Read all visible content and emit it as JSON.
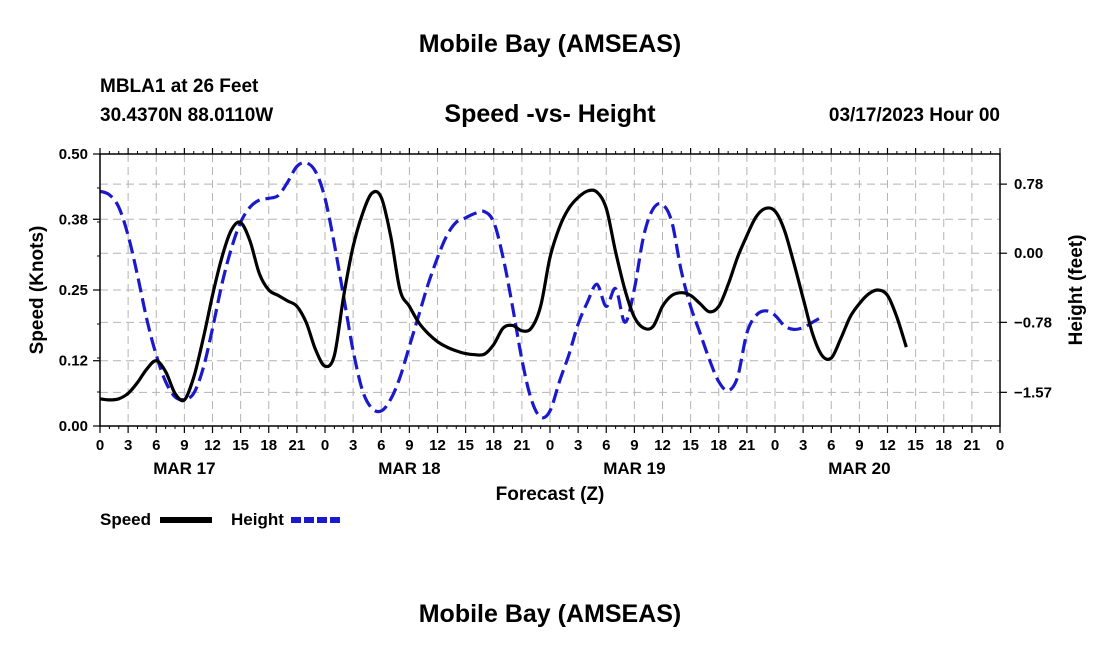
{
  "page": {
    "title": "Mobile Bay (AMSEAS)",
    "station": "MBLA1 at 26 Feet",
    "coords": "30.4370N  88.0110W",
    "run": "03/17/2023 Hour 00",
    "footer_title": "Mobile Bay (AMSEAS)"
  },
  "chart_data": {
    "type": "line",
    "title": "Speed -vs- Height",
    "xlabel": "Forecast (Z)",
    "ylabel": "Speed (Knots)",
    "y2label": "Height (feet)",
    "x_range_hours": [
      0,
      96
    ],
    "x_tick_labels": [
      "0",
      "3",
      "6",
      "9",
      "12",
      "15",
      "18",
      "21",
      "0",
      "3",
      "6",
      "9",
      "12",
      "15",
      "18",
      "21",
      "0",
      "3",
      "6",
      "9",
      "12",
      "15",
      "18",
      "21",
      "0",
      "3",
      "6",
      "9",
      "12",
      "15",
      "18",
      "21",
      "0"
    ],
    "date_labels": [
      {
        "label": "MAR 17",
        "hour": 9
      },
      {
        "label": "MAR 18",
        "hour": 33
      },
      {
        "label": "MAR 19",
        "hour": 57
      },
      {
        "label": "MAR 20",
        "hour": 81
      }
    ],
    "ylim": [
      0,
      0.5
    ],
    "y_ticks": [
      0.0,
      0.12,
      0.25,
      0.38,
      0.5
    ],
    "y_tick_labels": [
      "0.00",
      "0.12",
      "0.25",
      "0.38",
      "0.50"
    ],
    "y2lim": [
      -1.95,
      1.12
    ],
    "y2_ticks": [
      0.78,
      0.0,
      -0.78,
      -1.57
    ],
    "y2_tick_labels": [
      "0.78",
      "0.00",
      "−0.78",
      "−1.57"
    ],
    "grid": true,
    "legend_placement": "bottom-left",
    "series": [
      {
        "name": "Speed",
        "axis": "left",
        "color": "#000000",
        "style": "solid",
        "points": [
          [
            0,
            0.05
          ],
          [
            1,
            0.048
          ],
          [
            2,
            0.05
          ],
          [
            3,
            0.06
          ],
          [
            4,
            0.08
          ],
          [
            5,
            0.105
          ],
          [
            6,
            0.12
          ],
          [
            7,
            0.1
          ],
          [
            8,
            0.06
          ],
          [
            9,
            0.048
          ],
          [
            10,
            0.09
          ],
          [
            11,
            0.16
          ],
          [
            12,
            0.24
          ],
          [
            13,
            0.31
          ],
          [
            14,
            0.36
          ],
          [
            15,
            0.374
          ],
          [
            16,
            0.34
          ],
          [
            17,
            0.28
          ],
          [
            18,
            0.25
          ],
          [
            19,
            0.24
          ],
          [
            20,
            0.23
          ],
          [
            21,
            0.22
          ],
          [
            22,
            0.19
          ],
          [
            23,
            0.14
          ],
          [
            24,
            0.11
          ],
          [
            25,
            0.13
          ],
          [
            26,
            0.24
          ],
          [
            27,
            0.33
          ],
          [
            28,
            0.39
          ],
          [
            29,
            0.428
          ],
          [
            30,
            0.42
          ],
          [
            31,
            0.35
          ],
          [
            32,
            0.25
          ],
          [
            33,
            0.22
          ],
          [
            34,
            0.19
          ],
          [
            35,
            0.17
          ],
          [
            36,
            0.155
          ],
          [
            37,
            0.145
          ],
          [
            38,
            0.138
          ],
          [
            39,
            0.133
          ],
          [
            40,
            0.131
          ],
          [
            41,
            0.132
          ],
          [
            42,
            0.15
          ],
          [
            43,
            0.18
          ],
          [
            44,
            0.185
          ],
          [
            45,
            0.175
          ],
          [
            46,
            0.18
          ],
          [
            47,
            0.22
          ],
          [
            48,
            0.31
          ],
          [
            49,
            0.365
          ],
          [
            50,
            0.4
          ],
          [
            51,
            0.42
          ],
          [
            52,
            0.432
          ],
          [
            53,
            0.43
          ],
          [
            54,
            0.4
          ],
          [
            55,
            0.32
          ],
          [
            56,
            0.25
          ],
          [
            57,
            0.2
          ],
          [
            58,
            0.18
          ],
          [
            59,
            0.183
          ],
          [
            60,
            0.22
          ],
          [
            61,
            0.24
          ],
          [
            62,
            0.245
          ],
          [
            63,
            0.24
          ],
          [
            64,
            0.225
          ],
          [
            65,
            0.21
          ],
          [
            66,
            0.22
          ],
          [
            67,
            0.26
          ],
          [
            68,
            0.31
          ],
          [
            69,
            0.35
          ],
          [
            70,
            0.385
          ],
          [
            71,
            0.4
          ],
          [
            72,
            0.395
          ],
          [
            73,
            0.36
          ],
          [
            74,
            0.3
          ],
          [
            75,
            0.235
          ],
          [
            76,
            0.17
          ],
          [
            77,
            0.13
          ],
          [
            78,
            0.125
          ],
          [
            79,
            0.16
          ],
          [
            80,
            0.2
          ],
          [
            81,
            0.225
          ],
          [
            82,
            0.243
          ],
          [
            83,
            0.25
          ],
          [
            84,
            0.24
          ],
          [
            85,
            0.2
          ],
          [
            86,
            0.145
          ]
        ]
      },
      {
        "name": "Height",
        "axis": "right",
        "color": "#1a1acc",
        "style": "dashed",
        "points": [
          [
            0,
            0.7
          ],
          [
            1,
            0.66
          ],
          [
            2,
            0.52
          ],
          [
            3,
            0.2
          ],
          [
            4,
            -0.25
          ],
          [
            5,
            -0.75
          ],
          [
            6,
            -1.15
          ],
          [
            7,
            -1.45
          ],
          [
            8,
            -1.62
          ],
          [
            9,
            -1.65
          ],
          [
            10,
            -1.58
          ],
          [
            11,
            -1.3
          ],
          [
            12,
            -0.85
          ],
          [
            13,
            -0.35
          ],
          [
            14,
            0.05
          ],
          [
            15,
            0.35
          ],
          [
            16,
            0.52
          ],
          [
            17,
            0.6
          ],
          [
            18,
            0.62
          ],
          [
            19,
            0.65
          ],
          [
            20,
            0.8
          ],
          [
            21,
            0.98
          ],
          [
            22,
            1.02
          ],
          [
            23,
            0.92
          ],
          [
            24,
            0.62
          ],
          [
            25,
            0.1
          ],
          [
            26,
            -0.5
          ],
          [
            27,
            -1.1
          ],
          [
            28,
            -1.55
          ],
          [
            29,
            -1.75
          ],
          [
            30,
            -1.78
          ],
          [
            31,
            -1.65
          ],
          [
            32,
            -1.4
          ],
          [
            33,
            -1.05
          ],
          [
            34,
            -0.7
          ],
          [
            35,
            -0.35
          ],
          [
            36,
            -0.05
          ],
          [
            37,
            0.2
          ],
          [
            38,
            0.35
          ],
          [
            39,
            0.4
          ],
          [
            40,
            0.45
          ],
          [
            41,
            0.47
          ],
          [
            42,
            0.35
          ],
          [
            43,
            -0.05
          ],
          [
            44,
            -0.6
          ],
          [
            45,
            -1.2
          ],
          [
            46,
            -1.65
          ],
          [
            47,
            -1.85
          ],
          [
            48,
            -1.78
          ],
          [
            49,
            -1.45
          ],
          [
            50,
            -1.15
          ],
          [
            51,
            -0.8
          ],
          [
            52,
            -0.55
          ],
          [
            53,
            -0.35
          ],
          [
            54,
            -0.6
          ],
          [
            55,
            -0.4
          ],
          [
            56,
            -0.78
          ],
          [
            57,
            -0.4
          ],
          [
            58,
            0.2
          ],
          [
            59,
            0.5
          ],
          [
            60,
            0.55
          ],
          [
            61,
            0.35
          ],
          [
            62,
            -0.2
          ],
          [
            63,
            -0.6
          ],
          [
            64,
            -0.9
          ],
          [
            65,
            -1.2
          ],
          [
            66,
            -1.45
          ],
          [
            67,
            -1.55
          ],
          [
            68,
            -1.4
          ],
          [
            69,
            -0.9
          ],
          [
            70,
            -0.7
          ],
          [
            71,
            -0.65
          ],
          [
            72,
            -0.7
          ],
          [
            73,
            -0.82
          ],
          [
            74,
            -0.86
          ],
          [
            75,
            -0.84
          ],
          [
            76,
            -0.78
          ],
          [
            77,
            -0.72
          ]
        ]
      }
    ]
  }
}
